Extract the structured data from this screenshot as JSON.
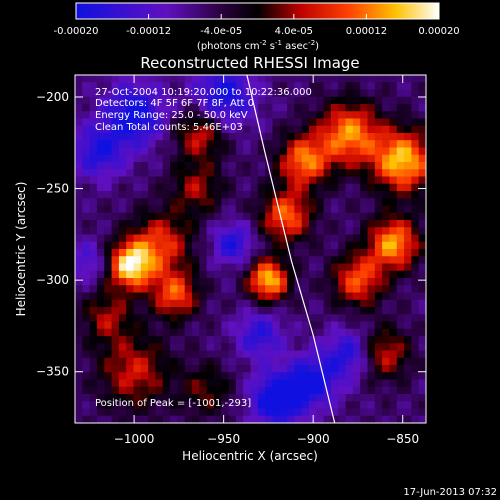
{
  "colorbar": {
    "ticks": [
      {
        "value": -0.0002,
        "label": "-0.00020"
      },
      {
        "value": -0.00012,
        "label": "-0.00012"
      },
      {
        "value": -4e-05,
        "label": "-4.0e-05"
      },
      {
        "value": 4e-05,
        "label": "4.0e-05"
      },
      {
        "value": 0.00012,
        "label": "0.00012"
      },
      {
        "value": 0.0002,
        "label": "0.00020"
      }
    ],
    "range": [
      -0.0002,
      0.0002
    ],
    "units_text": "(photons cm",
    "units_sup1": "-2",
    "units_mid1": " s",
    "units_sup2": "-1",
    "units_mid2": " asec",
    "units_sup3": "-2",
    "units_end": ")"
  },
  "chart_data": {
    "type": "heatmap",
    "title": "Reconstructed RHESSI Image",
    "xlabel": "Heliocentric X (arcsec)",
    "ylabel": "Heliocentric Y (arcsec)",
    "xlim": [
      -1033,
      -837
    ],
    "ylim": [
      -378,
      -188
    ],
    "x_ticks": [
      {
        "value": -1000,
        "label": "−1000"
      },
      {
        "value": -950,
        "label": "−950"
      },
      {
        "value": -900,
        "label": "−900"
      },
      {
        "value": -850,
        "label": "−850"
      }
    ],
    "y_ticks": [
      {
        "value": -200,
        "label": "−200"
      },
      {
        "value": -250,
        "label": "−250"
      },
      {
        "value": -300,
        "label": "−300"
      },
      {
        "value": -350,
        "label": "−350"
      }
    ],
    "annotations": [
      "27-Oct-2004 10:19:20.000 to 10:22:36.000",
      "Detectors: 4F 5F 6F 7F 8F, Att 0",
      "Energy Range: 25.0 - 50.0 keV",
      "Clean     Total counts: 5.46E+03"
    ],
    "peak_label": "Position of Peak = [-1001,-293]",
    "peak": {
      "x": -1001,
      "y": -293
    },
    "limb_line": [
      [
        -937,
        -188
      ],
      [
        -927,
        -230
      ],
      [
        -912,
        -290
      ],
      [
        -900,
        -330
      ],
      [
        -888,
        -378
      ]
    ],
    "sources": [
      {
        "x": -1002,
        "y": -292,
        "amplitude": 0.00024,
        "width": 9
      },
      {
        "x": -985,
        "y": -280,
        "amplitude": 0.00014,
        "width": 12
      },
      {
        "x": -977,
        "y": -308,
        "amplitude": 0.00016,
        "width": 9
      },
      {
        "x": -963,
        "y": -220,
        "amplitude": 0.00013,
        "width": 10
      },
      {
        "x": -965,
        "y": -250,
        "amplitude": 0.0001,
        "width": 10
      },
      {
        "x": -925,
        "y": -300,
        "amplitude": 0.00022,
        "width": 8
      },
      {
        "x": -915,
        "y": -265,
        "amplitude": 0.00017,
        "width": 10
      },
      {
        "x": -905,
        "y": -235,
        "amplitude": 0.00018,
        "width": 10
      },
      {
        "x": -880,
        "y": -220,
        "amplitude": 0.00019,
        "width": 12
      },
      {
        "x": -850,
        "y": -235,
        "amplitude": 0.00022,
        "width": 12
      },
      {
        "x": -855,
        "y": -280,
        "amplitude": 0.0002,
        "width": 10
      },
      {
        "x": -875,
        "y": -300,
        "amplitude": 0.00016,
        "width": 10
      },
      {
        "x": -860,
        "y": -340,
        "amplitude": 0.00012,
        "width": 10
      },
      {
        "x": -1000,
        "y": -350,
        "amplitude": 0.00012,
        "width": 14
      },
      {
        "x": -1015,
        "y": -320,
        "amplitude": 0.0001,
        "width": 10
      },
      {
        "x": -960,
        "y": -360,
        "amplitude": 8e-05,
        "width": 10
      },
      {
        "x": -1020,
        "y": -230,
        "amplitude": -0.00012,
        "width": 10
      },
      {
        "x": -1000,
        "y": -210,
        "amplitude": -0.00015,
        "width": 12
      },
      {
        "x": -950,
        "y": -200,
        "amplitude": -0.00014,
        "width": 12
      },
      {
        "x": -945,
        "y": -280,
        "amplitude": -0.00012,
        "width": 8
      },
      {
        "x": -920,
        "y": -365,
        "amplitude": -0.00018,
        "width": 10
      },
      {
        "x": -900,
        "y": -355,
        "amplitude": -0.00014,
        "width": 10
      },
      {
        "x": -880,
        "y": -340,
        "amplitude": -0.00012,
        "width": 9
      },
      {
        "x": -930,
        "y": -330,
        "amplitude": -0.00011,
        "width": 9
      },
      {
        "x": -1025,
        "y": -290,
        "amplitude": -8e-05,
        "width": 8
      }
    ],
    "grid": false
  },
  "timestamp": "17-Jun-2013 07:32"
}
